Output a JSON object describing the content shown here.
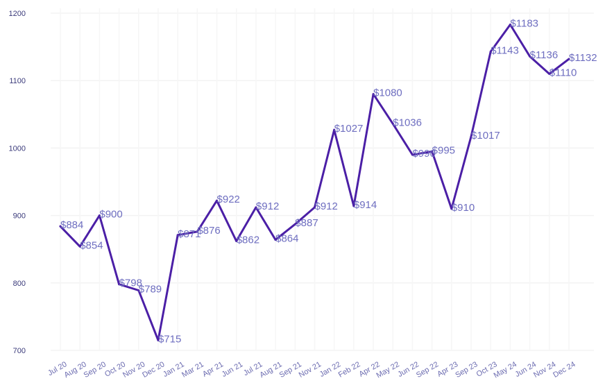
{
  "chart_data": {
    "type": "line",
    "title": "",
    "xlabel": "",
    "ylabel": "",
    "ylim": [
      700,
      1200
    ],
    "yticks": [
      700,
      800,
      900,
      1000,
      1100,
      1200
    ],
    "grid": true,
    "legend": "none",
    "line_color": "#4b1fa6",
    "label_color": "#6e6ec0",
    "categories": [
      "Jul 20",
      "Aug 20",
      "Sep 20",
      "Oct 20",
      "Nov 20",
      "Dec 20",
      "Jan 21",
      "Mar 21",
      "Apr 21",
      "Jun 21",
      "Jul 21",
      "Aug 21",
      "Sep 21",
      "Nov 21",
      "Jan 22",
      "Feb 22",
      "Apr 22",
      "May 22",
      "Jun 22",
      "Sep 22",
      "Apr 23",
      "Sep 23",
      "Oct 23",
      "May 24",
      "Jun 24",
      "Nov 24",
      "Dec 24"
    ],
    "values": [
      884,
      854,
      900,
      798,
      789,
      715,
      871,
      876,
      922,
      862,
      912,
      864,
      887,
      912,
      1027,
      914,
      1080,
      1036,
      990,
      995,
      910,
      1017,
      1143,
      1183,
      1136,
      1110,
      1132
    ],
    "data_labels": [
      "$884",
      "$854",
      "$900",
      "$798",
      "$789",
      "$715",
      "$871",
      "$876",
      "$922",
      "$862",
      "$912",
      "$864",
      "$887",
      "$912",
      "$1027",
      "$914",
      "$1080",
      "$1036",
      "$990",
      "$995",
      "$910",
      "$1017",
      "$1143",
      "$1183",
      "$1136",
      "$1110",
      "$1132"
    ]
  }
}
